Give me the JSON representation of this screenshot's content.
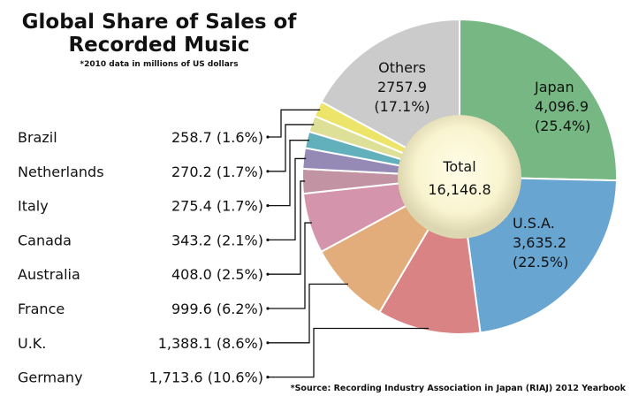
{
  "title": "Global Share of Sales of Recorded Music",
  "subtitle": "*2010 data in millions of US dollars",
  "source": "*Source: Recording Industry Association in Japan (RIAJ) 2012 Yearbook",
  "chart_data": {
    "type": "pie",
    "style": "donut",
    "title": "Global Share of Sales of Recorded Music",
    "units": "millions of US dollars (2010)",
    "total_label": "Total",
    "total_value": "16,146.8",
    "slices": [
      {
        "name": "Japan",
        "value": 4096.9,
        "value_label": "4,096.9",
        "pct_label": "(25.4%)",
        "color": "#76b783"
      },
      {
        "name": "U.S.A.",
        "value": 3635.2,
        "value_label": "3,635.2",
        "pct_label": "(22.5%)",
        "color": "#68a5d0"
      },
      {
        "name": "Germany",
        "value": 1713.6,
        "value_label": "1,713.6",
        "pct_label": "(10.6%)",
        "color": "#d98385"
      },
      {
        "name": "U.K.",
        "value": 1388.1,
        "value_label": "1,388.1",
        "pct_label": "(8.6%)",
        "color": "#e2ad7b"
      },
      {
        "name": "France",
        "value": 999.6,
        "value_label": "999.6",
        "pct_label": "(6.2%)",
        "color": "#d494ac"
      },
      {
        "name": "Australia",
        "value": 408.0,
        "value_label": "408.0",
        "pct_label": "(2.5%)",
        "color": "#c193a3"
      },
      {
        "name": "Canada",
        "value": 343.2,
        "value_label": "343.2",
        "pct_label": "(2.1%)",
        "color": "#9589b5"
      },
      {
        "name": "Italy",
        "value": 275.4,
        "value_label": "275.4",
        "pct_label": "(1.7%)",
        "color": "#61b0bb"
      },
      {
        "name": "Netherlands",
        "value": 270.2,
        "value_label": "270.2",
        "pct_label": "(1.7%)",
        "color": "#dde096"
      },
      {
        "name": "Brazil",
        "value": 258.7,
        "value_label": "258.7",
        "pct_label": "(1.6%)",
        "color": "#ede56a"
      },
      {
        "name": "Others",
        "value": 2757.9,
        "value_label": "2757.9",
        "pct_label": "(17.1%)",
        "color": "#cbcbcb"
      }
    ],
    "legend_order": [
      "Brazil",
      "Netherlands",
      "Italy",
      "Canada",
      "Australia",
      "France",
      "U.K.",
      "Germany"
    ],
    "inline_labels": [
      "Japan",
      "U.S.A.",
      "Others"
    ]
  }
}
